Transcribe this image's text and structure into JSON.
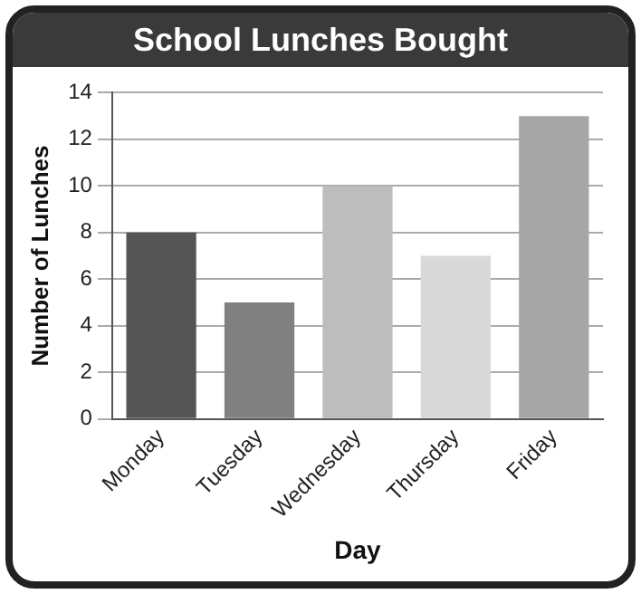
{
  "chart_data": {
    "type": "bar",
    "title": "School Lunches Bought",
    "xlabel": "Day",
    "ylabel": "Number of Lunches",
    "categories": [
      "Monday",
      "Tuesday",
      "Wednesday",
      "Thursday",
      "Friday"
    ],
    "values": [
      8,
      5,
      10,
      7,
      13
    ],
    "colors": [
      "#555555",
      "#808080",
      "#bdbdbd",
      "#d9d9d9",
      "#a6a6a6"
    ],
    "ylim": [
      0,
      14
    ],
    "yticks": [
      0,
      2,
      4,
      6,
      8,
      10,
      12,
      14
    ],
    "grid": "y",
    "legend": false
  }
}
